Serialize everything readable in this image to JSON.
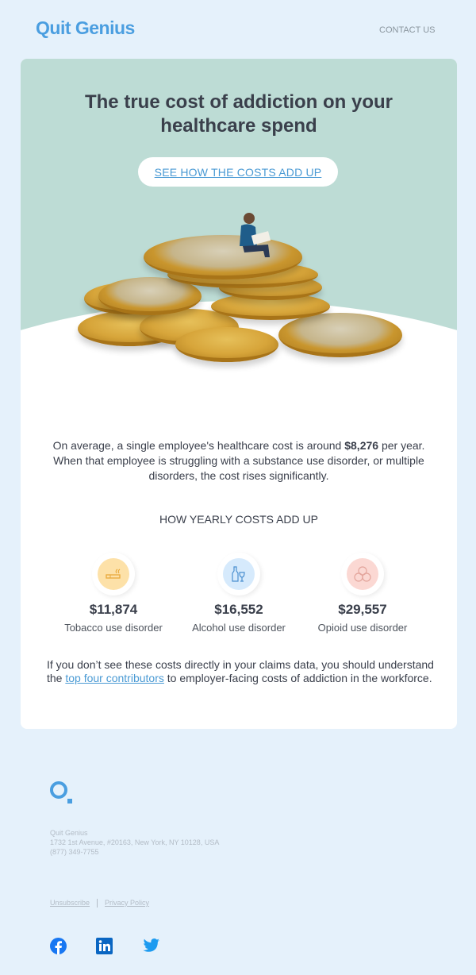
{
  "header": {
    "logo": "Quit Genius",
    "contact": "CONTACT US"
  },
  "hero": {
    "title": "The true cost of addiction on your healthcare spend",
    "cta": "SEE HOW THE COSTS ADD UP"
  },
  "intro": {
    "before": "On average, a single employee's healthcare cost is around ",
    "amount": "$8,276",
    "after": " per year. When that employee is struggling with a substance use disorder, or multiple disorders, the cost rises significantly."
  },
  "section_title": "HOW YEARLY COSTS ADD UP",
  "stats": [
    {
      "amount": "$11,874",
      "label": "Tobacco use disorder",
      "icon": "cigarette-icon",
      "color": "#fde1a8"
    },
    {
      "amount": "$16,552",
      "label": "Alcohol use disorder",
      "icon": "bottle-glass-icon",
      "color": "#d6eafc"
    },
    {
      "amount": "$29,557",
      "label": "Opioid use disorder",
      "icon": "pills-icon",
      "color": "#fbd8d3"
    }
  ],
  "outro": {
    "before": "If you don’t see these costs directly in your claims data, you should understand the ",
    "link": "top four contributors",
    "after": " to employer-facing costs of addiction in the workforce."
  },
  "footer": {
    "company": "Quit Genius",
    "address": "1732 1st Avenue, #20163, New York, NY 10128, USA",
    "phone": "(877) 349-7755",
    "unsubscribe": "Unsubscribe",
    "privacy": "Privacy Policy"
  }
}
